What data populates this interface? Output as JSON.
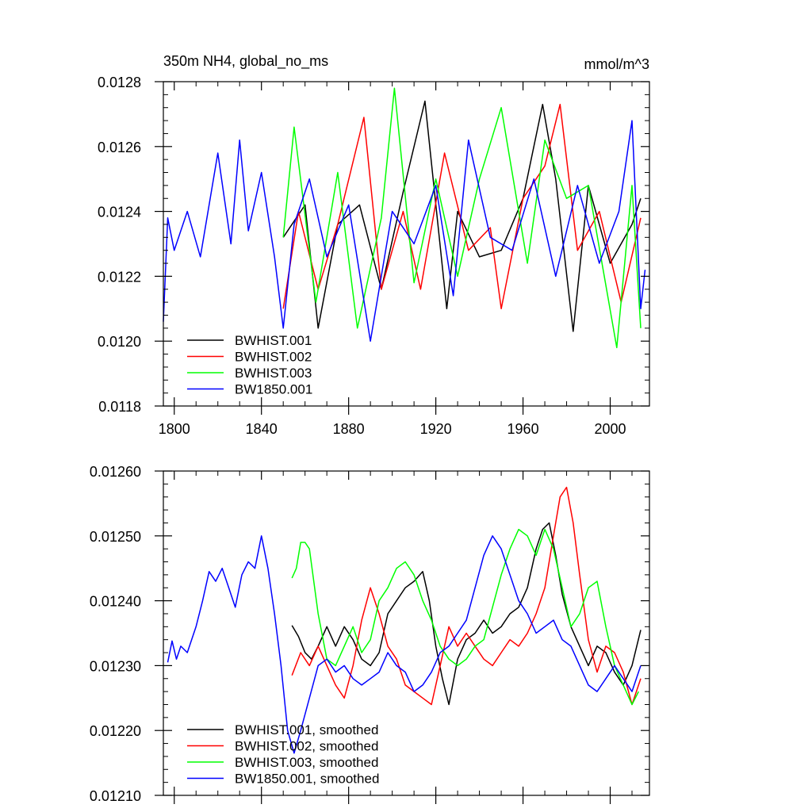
{
  "chart_data": [
    {
      "type": "line",
      "title": "350m NH4, global_no_ms",
      "units": "mmol/m^3",
      "xlim": [
        1795,
        2018
      ],
      "ylim": [
        0.0118,
        0.0128
      ],
      "xticks": [
        1800,
        1840,
        1880,
        1920,
        1960,
        2000
      ],
      "xtick_labels": [
        "1800",
        "1840",
        "1880",
        "1920",
        "1960",
        "2000"
      ],
      "yticks": [
        0.0118,
        0.012,
        0.0122,
        0.0124,
        0.0126,
        0.0128
      ],
      "ytick_labels": [
        "0.0118",
        "0.0120",
        "0.0122",
        "0.0124",
        "0.0126",
        "0.0128"
      ],
      "legend_position": "bottom-left",
      "grid": false,
      "series": [
        {
          "name": "BWHIST.001",
          "color": "#000000",
          "x": [
            1850,
            1860,
            1866,
            1875,
            1885,
            1895,
            1905,
            1915,
            1925,
            1930,
            1940,
            1950,
            1960,
            1969,
            1975,
            1983,
            1990,
            2000,
            2010,
            2014
          ],
          "y": [
            0.01232,
            0.01242,
            0.01204,
            0.01236,
            0.01242,
            0.01216,
            0.01246,
            0.01274,
            0.0121,
            0.0124,
            0.01226,
            0.01228,
            0.01244,
            0.01273,
            0.0125,
            0.01203,
            0.01248,
            0.01224,
            0.01236,
            0.01244
          ]
        },
        {
          "name": "BWHIST.002",
          "color": "#ff0000",
          "x": [
            1850,
            1857,
            1866,
            1875,
            1887,
            1895,
            1905,
            1913,
            1924,
            1935,
            1945,
            1950,
            1960,
            1970,
            1977,
            1985,
            1995,
            2005,
            2014
          ],
          "y": [
            0.0121,
            0.0124,
            0.01216,
            0.01236,
            0.01269,
            0.01216,
            0.0124,
            0.01216,
            0.01258,
            0.01228,
            0.01235,
            0.0121,
            0.01244,
            0.01254,
            0.01273,
            0.01228,
            0.0124,
            0.01212,
            0.01238
          ]
        },
        {
          "name": "BWHIST.003",
          "color": "#00ff00",
          "x": [
            1850,
            1855,
            1865,
            1875,
            1884,
            1895,
            1901,
            1910,
            1920,
            1930,
            1940,
            1950,
            1962,
            1970,
            1980,
            1990,
            2003,
            2010,
            2014
          ],
          "y": [
            0.01232,
            0.01266,
            0.01212,
            0.01252,
            0.01204,
            0.01238,
            0.01278,
            0.01218,
            0.0125,
            0.0122,
            0.0125,
            0.01272,
            0.01224,
            0.01262,
            0.01244,
            0.01248,
            0.01198,
            0.01248,
            0.01204
          ]
        },
        {
          "name": "BW1850.001",
          "color": "#0000ff",
          "x": [
            1795,
            1797,
            1800,
            1806,
            1812,
            1820,
            1826,
            1830,
            1834,
            1840,
            1846,
            1850,
            1855,
            1862,
            1870,
            1880,
            1890,
            1900,
            1910,
            1920,
            1928,
            1935,
            1945,
            1955,
            1965,
            1975,
            1985,
            1995,
            2004,
            2010,
            2014,
            2016
          ],
          "y": [
            0.01206,
            0.01238,
            0.01228,
            0.0124,
            0.01226,
            0.01258,
            0.0123,
            0.01262,
            0.01234,
            0.01252,
            0.01226,
            0.01204,
            0.01236,
            0.0125,
            0.01226,
            0.01242,
            0.012,
            0.0124,
            0.0123,
            0.01248,
            0.01214,
            0.01262,
            0.01232,
            0.01228,
            0.0125,
            0.0122,
            0.01248,
            0.01224,
            0.0124,
            0.01268,
            0.0121,
            0.01222
          ]
        }
      ]
    },
    {
      "type": "line",
      "title": "",
      "xlim": [
        1795,
        2018
      ],
      "ylim": [
        0.0121,
        0.0126
      ],
      "xticks": [
        1800,
        1840,
        1880,
        1920,
        1960,
        2000
      ],
      "yticks": [
        0.0121,
        0.0122,
        0.0123,
        0.0124,
        0.0125,
        0.0126
      ],
      "ytick_labels": [
        "0.01210",
        "0.01220",
        "0.01230",
        "0.01240",
        "0.01250",
        "0.01260"
      ],
      "legend_position": "bottom-left",
      "grid": false,
      "series": [
        {
          "name": "BWHIST.001, smoothed",
          "color": "#000000",
          "x": [
            1854,
            1857,
            1860,
            1863,
            1866,
            1870,
            1874,
            1878,
            1882,
            1886,
            1890,
            1894,
            1898,
            1902,
            1906,
            1910,
            1914,
            1917,
            1920,
            1923,
            1926,
            1930,
            1934,
            1938,
            1942,
            1946,
            1950,
            1954,
            1958,
            1962,
            1966,
            1969,
            1972,
            1975,
            1978,
            1982,
            1986,
            1990,
            1994,
            1998,
            2002,
            2006,
            2010,
            2014
          ],
          "y": [
            0.012362,
            0.012345,
            0.01232,
            0.01231,
            0.01233,
            0.01236,
            0.01233,
            0.01236,
            0.01234,
            0.01231,
            0.0123,
            0.01232,
            0.01238,
            0.0124,
            0.01242,
            0.01243,
            0.012445,
            0.0124,
            0.01233,
            0.01228,
            0.01224,
            0.01231,
            0.01234,
            0.01235,
            0.01237,
            0.01235,
            0.01236,
            0.01238,
            0.01239,
            0.01242,
            0.01248,
            0.01251,
            0.01252,
            0.01247,
            0.01241,
            0.01236,
            0.01233,
            0.0123,
            0.01233,
            0.01232,
            0.01229,
            0.01227,
            0.0123,
            0.012355
          ]
        },
        {
          "name": "BWHIST.002, smoothed",
          "color": "#ff0000",
          "x": [
            1854,
            1858,
            1862,
            1866,
            1870,
            1874,
            1878,
            1882,
            1886,
            1890,
            1894,
            1898,
            1902,
            1906,
            1910,
            1914,
            1918,
            1922,
            1926,
            1930,
            1934,
            1938,
            1942,
            1946,
            1950,
            1954,
            1958,
            1962,
            1966,
            1970,
            1974,
            1977,
            1980,
            1983,
            1986,
            1990,
            1994,
            1998,
            2002,
            2006,
            2010,
            2014
          ],
          "y": [
            0.012285,
            0.01232,
            0.0123,
            0.01233,
            0.0123,
            0.01227,
            0.01225,
            0.0123,
            0.01237,
            0.01242,
            0.01238,
            0.01233,
            0.01231,
            0.01227,
            0.01226,
            0.01225,
            0.01224,
            0.0123,
            0.01236,
            0.01233,
            0.01235,
            0.01233,
            0.01231,
            0.0123,
            0.01232,
            0.01234,
            0.01233,
            0.01235,
            0.01238,
            0.01242,
            0.0125,
            0.01256,
            0.012575,
            0.01252,
            0.01244,
            0.01234,
            0.01229,
            0.01233,
            0.01232,
            0.01229,
            0.01224,
            0.01228
          ]
        },
        {
          "name": "BWHIST.003, smoothed",
          "color": "#00ff00",
          "x": [
            1854,
            1856,
            1858,
            1860,
            1862,
            1864,
            1866,
            1870,
            1874,
            1878,
            1882,
            1886,
            1890,
            1894,
            1898,
            1902,
            1906,
            1910,
            1914,
            1918,
            1922,
            1926,
            1930,
            1934,
            1938,
            1942,
            1946,
            1950,
            1954,
            1958,
            1962,
            1966,
            1970,
            1974,
            1978,
            1982,
            1986,
            1990,
            1994,
            1998,
            2002,
            2006,
            2010,
            2013
          ],
          "y": [
            0.012435,
            0.01245,
            0.01249,
            0.01249,
            0.01248,
            0.01243,
            0.01238,
            0.01231,
            0.0123,
            0.01233,
            0.01236,
            0.01232,
            0.01234,
            0.0124,
            0.01242,
            0.01245,
            0.01246,
            0.01244,
            0.0124,
            0.01237,
            0.01233,
            0.01231,
            0.0123,
            0.01231,
            0.01233,
            0.01234,
            0.01239,
            0.01244,
            0.01248,
            0.01251,
            0.0125,
            0.01247,
            0.01251,
            0.01248,
            0.01242,
            0.01236,
            0.01238,
            0.01242,
            0.01243,
            0.01236,
            0.0123,
            0.01227,
            0.01224,
            0.01226
          ]
        },
        {
          "name": "BW1850.001, smoothed",
          "color": "#0000ff",
          "x": [
            1797,
            1799,
            1801,
            1803,
            1806,
            1810,
            1813,
            1816,
            1819,
            1822,
            1825,
            1828,
            1831,
            1834,
            1837,
            1840,
            1843,
            1846,
            1849,
            1852,
            1855,
            1858,
            1862,
            1866,
            1870,
            1874,
            1878,
            1882,
            1886,
            1890,
            1894,
            1898,
            1902,
            1906,
            1910,
            1914,
            1918,
            1922,
            1926,
            1930,
            1934,
            1938,
            1942,
            1946,
            1950,
            1954,
            1958,
            1962,
            1966,
            1970,
            1974,
            1978,
            1982,
            1986,
            1990,
            1994,
            1998,
            2002,
            2006,
            2010,
            2014
          ],
          "y": [
            0.012305,
            0.012338,
            0.01231,
            0.01233,
            0.01232,
            0.01236,
            0.0124,
            0.012445,
            0.01243,
            0.01245,
            0.01242,
            0.01239,
            0.01244,
            0.01246,
            0.01245,
            0.0125,
            0.01245,
            0.01238,
            0.0123,
            0.0122,
            0.012165,
            0.0122,
            0.01225,
            0.0123,
            0.01231,
            0.01229,
            0.0123,
            0.01228,
            0.01227,
            0.01228,
            0.01229,
            0.01232,
            0.0123,
            0.01229,
            0.01226,
            0.01227,
            0.01229,
            0.01232,
            0.01233,
            0.01235,
            0.01237,
            0.01242,
            0.01247,
            0.0125,
            0.01248,
            0.01244,
            0.0124,
            0.01238,
            0.01235,
            0.01236,
            0.01237,
            0.01234,
            0.01233,
            0.0123,
            0.01227,
            0.01226,
            0.01228,
            0.0123,
            0.01228,
            0.01226,
            0.0123
          ]
        }
      ]
    }
  ]
}
